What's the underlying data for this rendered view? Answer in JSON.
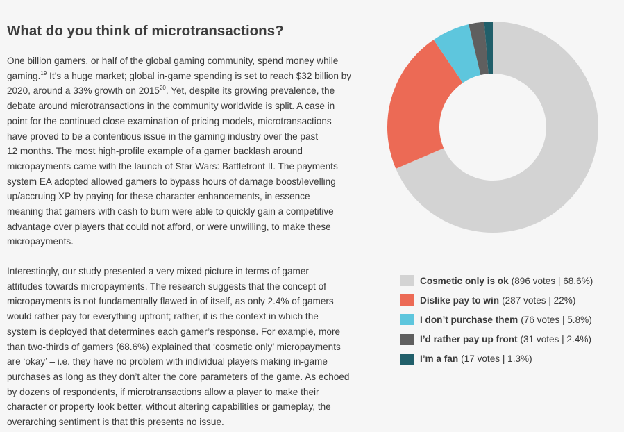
{
  "heading": "What do you think of microtransactions?",
  "paragraph1": {
    "lines": [
      "One billion gamers, or half of the global gaming community, spend money while",
      "gaming.",
      "19",
      " It’s a huge market; global in-game spending is set to reach $32 billion by",
      "2020, around a 33% growth on 2015",
      "20",
      ". Yet, despite its growing prevalence, the",
      "debate around microtransactions in the community worldwide is split. A case in",
      "point for the continued close examination of pricing models, microtransactions",
      "have proved to be a contentious issue in the gaming industry over the past",
      "12 months. The most high-profile example of a gamer backlash around",
      "micropayments came with the launch of Star Wars: Battlefront II. The payments",
      "system EA adopted allowed gamers to bypass hours of damage boost/levelling",
      "up/accruing XP by paying for these character enhancements, in essence",
      "meaning that gamers with cash to burn were able to quickly gain a competitive",
      "advantage over players that could not afford, or were unwilling, to make these",
      "micropayments."
    ]
  },
  "paragraph2": {
    "lines": [
      "Interestingly, our study presented a very mixed picture in terms of gamer",
      "attitudes towards micropayments. The research suggests that the concept of",
      "micropayments is not fundamentally flawed in of itself, as only 2.4% of gamers",
      "would rather pay for everything upfront; rather, it is the context in which the",
      "system is deployed that determines each gamer’s response. For example, more",
      "than two-thirds of gamers (68.6%) explained that ‘cosmetic only’ micropayments",
      "are ‘okay’ – i.e. they have no problem with individual players making in-game",
      "purchases as long as they don’t alter the core parameters of the game. As echoed",
      "by dozens of respondents, if microtransactions allow a player to make their",
      "character or property look better, without altering capabilities or gameplay, the",
      "overarching sentiment is that this presents no issue."
    ]
  },
  "chart_data": {
    "type": "pie",
    "variant": "donut",
    "title": "",
    "start": "top",
    "direction": "clockwise",
    "legend_position": "bottom",
    "series": [
      {
        "name": "Cosmetic only is ok",
        "votes": 896,
        "percent": 68.6,
        "meta": "(896 votes | 68.6%)",
        "color": "#d3d3d3"
      },
      {
        "name": "Dislike pay to win",
        "votes": 287,
        "percent": 22,
        "meta": "(287 votes | 22%)",
        "color": "#ec6a55"
      },
      {
        "name": "I don’t purchase them",
        "votes": 76,
        "percent": 5.8,
        "meta": "(76 votes | 5.8%)",
        "color": "#5ec6dd"
      },
      {
        "name": "I’d rather pay up front",
        "votes": 31,
        "percent": 2.4,
        "meta": "(31 votes | 2.4%)",
        "color": "#5f5f5f"
      },
      {
        "name": "I’m a fan",
        "votes": 17,
        "percent": 1.3,
        "meta": "(17 votes | 1.3%)",
        "color": "#215f6a"
      }
    ]
  }
}
